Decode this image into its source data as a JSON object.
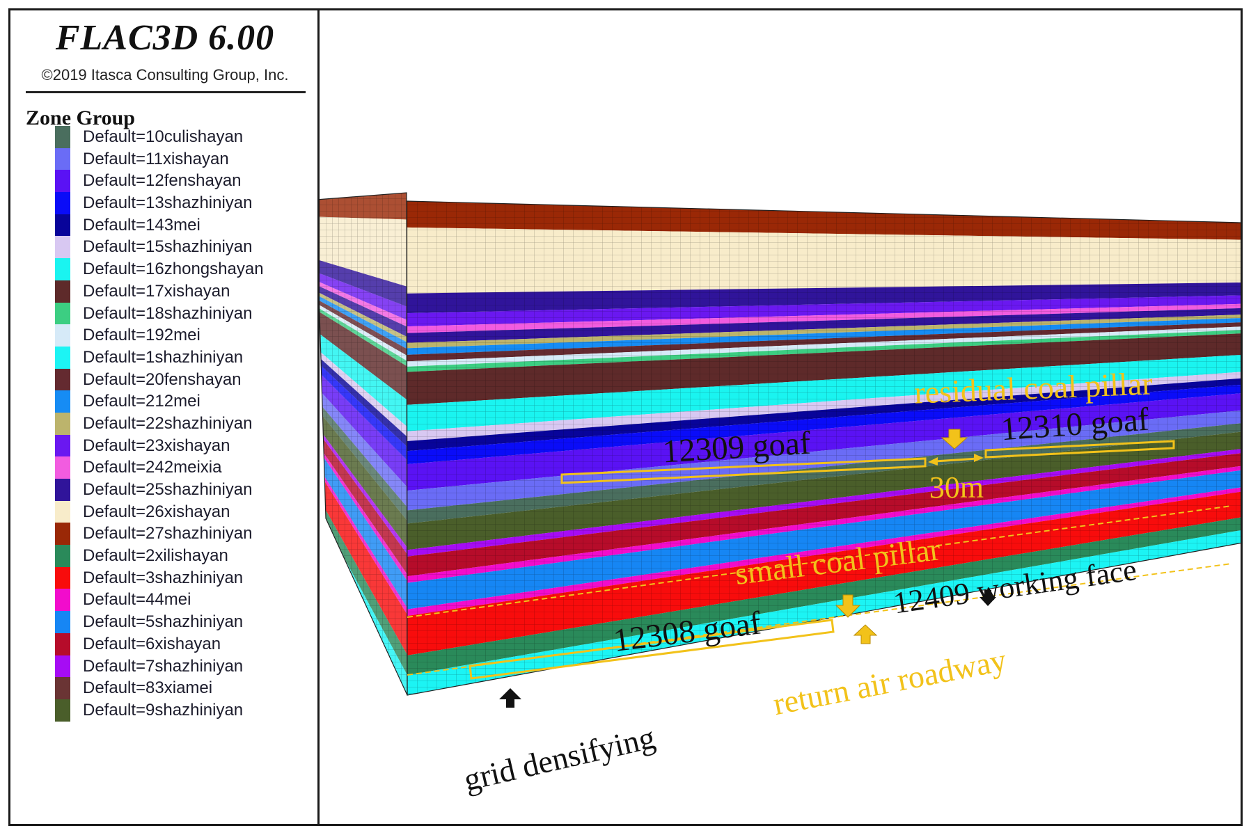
{
  "header": {
    "title": "FLAC3D 6.00",
    "copyright": "©2019 Itasca Consulting Group, Inc."
  },
  "legend": {
    "title": "Zone Group",
    "items": [
      {
        "label": "Default=10culishayan",
        "color": "#4a6e5e"
      },
      {
        "label": "Default=11xishayan",
        "color": "#6a6cf6"
      },
      {
        "label": "Default=12fenshayan",
        "color": "#5a12f4"
      },
      {
        "label": "Default=13shazhiniyan",
        "color": "#0a0cf8"
      },
      {
        "label": "Default=143mei",
        "color": "#08049a"
      },
      {
        "label": "Default=15shazhiniyan",
        "color": "#d8c8f2"
      },
      {
        "label": "Default=16zhongshayan",
        "color": "#1af4f0"
      },
      {
        "label": "Default=17xishayan",
        "color": "#5e2a2a"
      },
      {
        "label": "Default=18shazhiniyan",
        "color": "#3cce82"
      },
      {
        "label": "Default=192mei",
        "color": "#d6eaf8"
      },
      {
        "label": "Default=1shazhiniyan",
        "color": "#1cf4f4"
      },
      {
        "label": "Default=20fenshayan",
        "color": "#642a30"
      },
      {
        "label": "Default=212mei",
        "color": "#168cf4"
      },
      {
        "label": "Default=22shazhiniyan",
        "color": "#bcb46c"
      },
      {
        "label": "Default=23xishayan",
        "color": "#6a18f0"
      },
      {
        "label": "Default=242meixia",
        "color": "#f25ce0"
      },
      {
        "label": "Default=25shazhiniyan",
        "color": "#30149a"
      },
      {
        "label": "Default=26xishayan",
        "color": "#f8ecca"
      },
      {
        "label": "Default=27shazhiniyan",
        "color": "#9a2806"
      },
      {
        "label": "Default=2xilishayan",
        "color": "#2a8a5a"
      },
      {
        "label": "Default=3shazhiniyan",
        "color": "#f80c0c"
      },
      {
        "label": "Default=44mei",
        "color": "#f20ccc"
      },
      {
        "label": "Default=5shazhiniyan",
        "color": "#1686f4"
      },
      {
        "label": "Default=6xishayan",
        "color": "#b60c2a"
      },
      {
        "label": "Default=7shazhiniyan",
        "color": "#a60cf4"
      },
      {
        "label": "Default=83xiamei",
        "color": "#6a3434"
      },
      {
        "label": "Default=9shazhiniyan",
        "color": "#4a5e2a"
      }
    ]
  },
  "annotations": {
    "residual_pillar": "residual coal pillar",
    "goaf_12309": "12309 goaf",
    "goaf_12310": "12310 goaf",
    "pillar_width": "30m",
    "small_pillar": "small coal pillar",
    "working_face": "12409 working face",
    "goaf_12308": "12308 goaf",
    "return_air": "return air roadway",
    "grid": "grid densifying"
  },
  "colors": {
    "annotation_gold": "#f2c21a",
    "annotation_dark": "#111111",
    "frame": "#1a1a1a"
  }
}
